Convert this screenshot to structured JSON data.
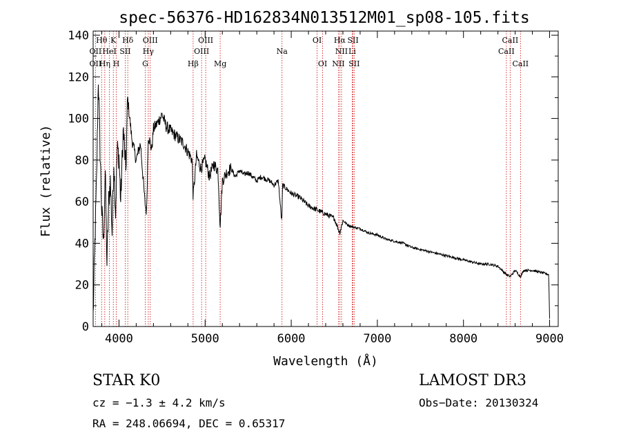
{
  "chart_data": {
    "type": "line",
    "title": "spec-56376-HD162834N013512M01_sp08-105.fits",
    "xlabel": "Wavelength (Å)",
    "ylabel": "Flux (relative)",
    "xlim": [
      3700,
      9100
    ],
    "ylim": [
      0,
      142
    ],
    "xticks": [
      4000,
      5000,
      6000,
      7000,
      8000,
      9000
    ],
    "yticks": [
      0,
      20,
      40,
      60,
      80,
      100,
      120,
      140
    ],
    "grid": false,
    "series": [
      {
        "name": "spectrum",
        "x": [
          3700,
          3720,
          3740,
          3760,
          3780,
          3800,
          3820,
          3840,
          3860,
          3880,
          3900,
          3920,
          3940,
          3960,
          3980,
          4000,
          4020,
          4050,
          4080,
          4100,
          4150,
          4200,
          4250,
          4300,
          4320,
          4340,
          4380,
          4400,
          4450,
          4500,
          4550,
          4600,
          4650,
          4700,
          4750,
          4800,
          4850,
          4861,
          4900,
          4950,
          5000,
          5050,
          5100,
          5150,
          5175,
          5200,
          5250,
          5300,
          5350,
          5400,
          5450,
          5500,
          5550,
          5600,
          5650,
          5700,
          5750,
          5800,
          5850,
          5890,
          5900,
          5950,
          6000,
          6050,
          6100,
          6150,
          6200,
          6250,
          6300,
          6350,
          6400,
          6450,
          6500,
          6563,
          6600,
          6650,
          6700,
          6800,
          6900,
          7000,
          7100,
          7200,
          7300,
          7400,
          7500,
          7600,
          7700,
          7800,
          7900,
          8000,
          8100,
          8200,
          8300,
          8400,
          8498,
          8542,
          8600,
          8662,
          8700,
          8800,
          8900,
          8990,
          9000
        ],
        "values": [
          5,
          40,
          70,
          120,
          85,
          55,
          40,
          75,
          30,
          60,
          70,
          45,
          80,
          55,
          85,
          82,
          60,
          95,
          75,
          110,
          90,
          80,
          88,
          60,
          55,
          92,
          85,
          95,
          98,
          102,
          96,
          94,
          92,
          90,
          88,
          84,
          80,
          62,
          82,
          76,
          80,
          72,
          78,
          75,
          48,
          70,
          74,
          76,
          72,
          75,
          73,
          74,
          72,
          70,
          72,
          71,
          70,
          68,
          70,
          50,
          68,
          66,
          64,
          63,
          62,
          60,
          58,
          57,
          56,
          55,
          54,
          53,
          52,
          45,
          51,
          49,
          48,
          47,
          45,
          44,
          42,
          41,
          40,
          38,
          37,
          36,
          35,
          34,
          33,
          32,
          31,
          30,
          30,
          29,
          25,
          24,
          27,
          24,
          27,
          27,
          26,
          25,
          4
        ]
      }
    ],
    "annotations": [
      {
        "text": "Hθ",
        "x": 3798,
        "row": 1
      },
      {
        "text": "K",
        "x": 3934,
        "row": 1
      },
      {
        "text": "Hδ",
        "x": 4102,
        "row": 1
      },
      {
        "text": "OIII",
        "x": 4363,
        "row": 1
      },
      {
        "text": "OIII",
        "x": 5007,
        "row": 1
      },
      {
        "text": "OI",
        "x": 6300,
        "row": 1
      },
      {
        "text": "Hα",
        "x": 6563,
        "row": 1
      },
      {
        "text": "SII",
        "x": 6717,
        "row": 1
      },
      {
        "text": "CaII",
        "x": 8542,
        "row": 1
      },
      {
        "text": "OII",
        "x": 3727,
        "row": 2
      },
      {
        "text": "HeI",
        "x": 3889,
        "row": 2
      },
      {
        "text": "SII",
        "x": 4072,
        "row": 2
      },
      {
        "text": "Hγ",
        "x": 4340,
        "row": 2
      },
      {
        "text": "OIII",
        "x": 4959,
        "row": 2
      },
      {
        "text": "Na",
        "x": 5893,
        "row": 2
      },
      {
        "text": "NII",
        "x": 6584,
        "row": 2
      },
      {
        "text": "Li",
        "x": 6708,
        "row": 2
      },
      {
        "text": "CaII",
        "x": 8498,
        "row": 2
      },
      {
        "text": "OII",
        "x": 3727,
        "row": 3
      },
      {
        "text": "Hη",
        "x": 3835,
        "row": 3
      },
      {
        "text": "H",
        "x": 3969,
        "row": 3
      },
      {
        "text": "G",
        "x": 4305,
        "row": 3
      },
      {
        "text": "Hβ",
        "x": 4861,
        "row": 3
      },
      {
        "text": "Mg",
        "x": 5175,
        "row": 3
      },
      {
        "text": "OI",
        "x": 6364,
        "row": 3
      },
      {
        "text": "NII",
        "x": 6548,
        "row": 3
      },
      {
        "text": "SII",
        "x": 6731,
        "row": 3
      },
      {
        "text": "CaII",
        "x": 8662,
        "row": 3
      }
    ],
    "line_markers": [
      3727,
      3798,
      3835,
      3889,
      3934,
      3969,
      4072,
      4102,
      4305,
      4340,
      4363,
      4861,
      4959,
      5007,
      5175,
      5893,
      6300,
      6364,
      6548,
      6563,
      6584,
      6708,
      6717,
      6731,
      8498,
      8542,
      8662
    ],
    "colors": {
      "curve": "#000000",
      "markers": "#cc0000",
      "axes": "#000000"
    }
  },
  "info": {
    "class_label": "STAR    K0",
    "cz_label": "cz = −1.3 ± 4.2 km/s",
    "radec_label": "RA = 248.06694, DEC =    0.65317",
    "survey_label": "LAMOST DR3",
    "obsdate_label": "Obs−Date: 20130324"
  }
}
